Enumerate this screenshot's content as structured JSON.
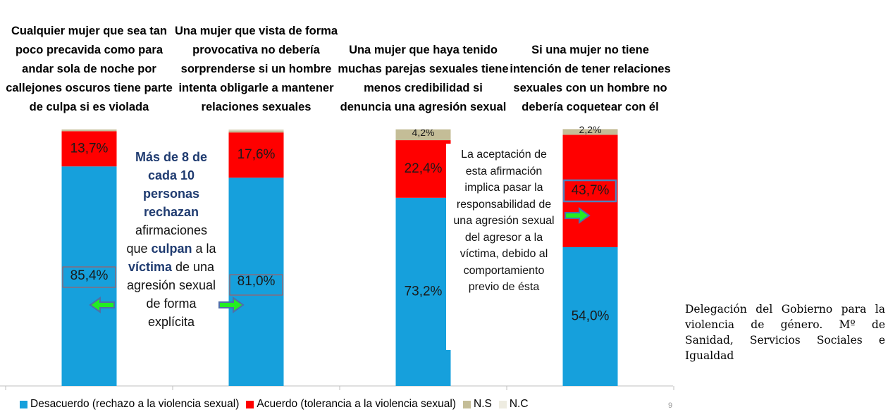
{
  "chart_data": {
    "type": "stacked_bar",
    "categories": [
      "Cualquier mujer que sea tan poco precavida como para andar sola de noche por callejones oscuros tiene parte de culpa si es violada",
      "Una mujer que vista de forma provocativa no debería sorprenderse si un hombre intenta obligarle a mantener relaciones sexuales",
      "Una mujer que haya tenido muchas parejas sexuales tiene menos credibilidad si denuncia una agresión sexual",
      "Si una mujer no tiene intención de tener relaciones sexuales con un hombre no debería coquetear con él"
    ],
    "series": [
      {
        "name": "Desacuerdo (rechazo a la violencia sexual)",
        "color": "#16a0dc",
        "values": [
          85.4,
          81.0,
          73.2,
          54.0
        ],
        "value_labels": [
          "85,4%",
          "81,0%",
          "73,2%",
          "54,0%"
        ]
      },
      {
        "name": "Acuerdo (tolerancia a la violencia sexual)",
        "color": "#ff0000",
        "values": [
          13.7,
          17.6,
          22.4,
          43.7
        ],
        "value_labels": [
          "13,7%",
          "17,6%",
          "22,4%",
          "43,7%"
        ]
      },
      {
        "name": "N.S",
        "color": "#c4bd97",
        "values": [
          0.6,
          0.8,
          4.2,
          2.2
        ],
        "value_labels": [
          null,
          null,
          "4,2%",
          "2,2%"
        ]
      },
      {
        "name": "N.C",
        "color": "#eeece1",
        "values": [
          0.3,
          0.6,
          0.2,
          0.1
        ],
        "value_labels": [
          null,
          null,
          null,
          null
        ]
      }
    ],
    "ylim": [
      0,
      100
    ],
    "annotations": [
      {
        "segments": [
          {
            "text": "Más de 8 de cada 10 personas rechazan",
            "bold": true
          },
          {
            "text": " afirmaciones que ",
            "bold": false
          },
          {
            "text": "culpan",
            "bold": true
          },
          {
            "text": " a la ",
            "bold": false
          },
          {
            "text": "víctima",
            "bold": true
          },
          {
            "text": " de una agresión sexual de forma explícita",
            "bold": false
          }
        ]
      },
      {
        "segments": [
          {
            "text": "La aceptación de esta afirmación implica pasar la responsabilidad de una agresión sexual del agresor a la víctima, debido al comportamiento previo de ésta",
            "bold": false
          }
        ]
      }
    ],
    "page_number": "9"
  },
  "source": "Delegación del Gobierno para la violencia de género. Mº de Sanidad, Servicios Sociales e Igualdad"
}
